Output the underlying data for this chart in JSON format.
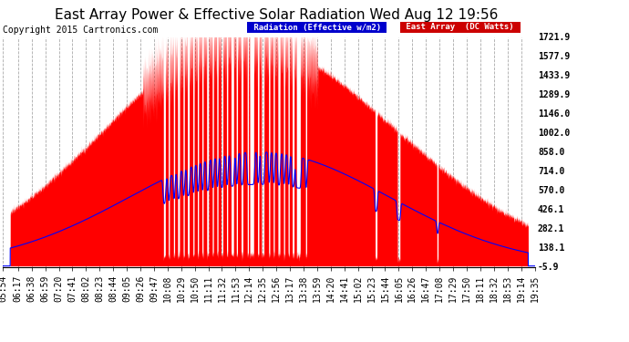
{
  "title": "East Array Power & Effective Solar Radiation Wed Aug 12 19:56",
  "copyright": "Copyright 2015 Cartronics.com",
  "yticks": [
    1721.9,
    1577.9,
    1433.9,
    1289.9,
    1146.0,
    1002.0,
    858.0,
    714.0,
    570.0,
    426.1,
    282.1,
    138.1,
    -5.9
  ],
  "ymin": -5.9,
  "ymax": 1721.9,
  "legend_radiation_label": "Radiation (Effective w/m2)",
  "legend_east_label": "East Array  (DC Watts)",
  "legend_radiation_bg": "#0000cc",
  "legend_east_bg": "#cc0000",
  "fill_red_color": "#ff0000",
  "line_blue_color": "#0000ff",
  "background_color": "#ffffff",
  "plot_bg_color": "#ffffff",
  "grid_color": "#aaaaaa",
  "title_fontsize": 11,
  "tick_fontsize": 7,
  "copyright_fontsize": 7,
  "xtick_labels": [
    "05:54",
    "06:17",
    "06:38",
    "06:59",
    "07:20",
    "07:41",
    "08:02",
    "08:23",
    "08:44",
    "09:05",
    "09:26",
    "09:47",
    "10:08",
    "10:29",
    "10:50",
    "11:11",
    "11:32",
    "11:53",
    "12:14",
    "12:35",
    "12:56",
    "13:17",
    "13:38",
    "13:59",
    "14:20",
    "14:41",
    "15:02",
    "15:23",
    "15:44",
    "16:05",
    "16:26",
    "16:47",
    "17:08",
    "17:29",
    "17:50",
    "18:11",
    "18:32",
    "18:53",
    "19:14",
    "19:35"
  ]
}
